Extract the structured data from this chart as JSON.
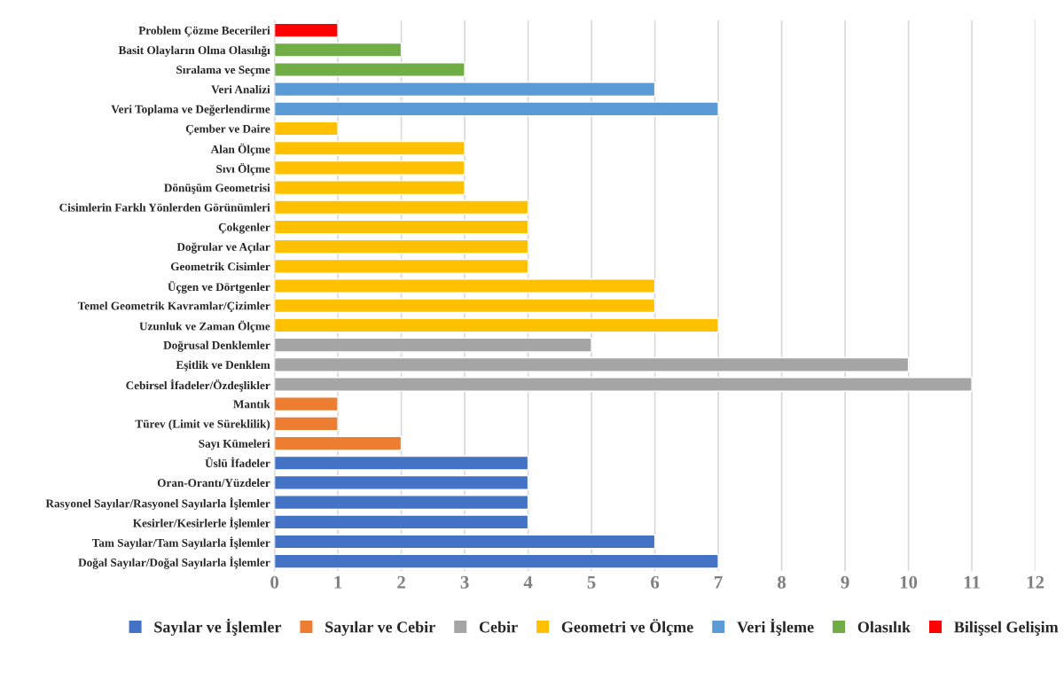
{
  "chart_data": {
    "type": "bar",
    "orientation": "horizontal",
    "categories": [
      "Problem Çözme Becerileri",
      "Basit Olayların Olma Olasılığı",
      "Sıralama ve Seçme",
      "Veri Analizi",
      "Veri Toplama ve Değerlendirme",
      "Çember ve Daire",
      "Alan Ölçme",
      "Sıvı Ölçme",
      "Dönüşüm Geometrisi",
      "Cisimlerin Farklı Yönlerden Görünümleri",
      "Çokgenler",
      "Doğrular ve Açılar",
      "Geometrik Cisimler",
      "Üçgen ve Dörtgenler",
      "Temel Geometrik Kavramlar/Çizimler",
      "Uzunluk ve Zaman Ölçme",
      "Doğrusal Denklemler",
      "Eşitlik ve Denklem",
      "Cebirsel İfadeler/Özdeşlikler",
      "Mantık",
      "Türev (Limit ve Süreklilik)",
      "Sayı Kümeleri",
      "Üslü İfadeler",
      "Oran-Orantı/Yüzdeler",
      "Rasyonel Sayılar/Rasyonel Sayılarla İşlemler",
      "Kesirler/Kesirlerle İşlemler",
      "Tam Sayılar/Tam Sayılarla İşlemler",
      "Doğal Sayılar/Doğal Sayılarla İşlemler"
    ],
    "series": [
      {
        "name": "Sayılar ve İşlemler",
        "color": "#4472c4",
        "values": [
          null,
          null,
          null,
          null,
          null,
          null,
          null,
          null,
          null,
          null,
          null,
          null,
          null,
          null,
          null,
          null,
          null,
          null,
          null,
          null,
          null,
          null,
          4,
          4,
          4,
          4,
          6,
          7
        ]
      },
      {
        "name": "Sayılar ve Cebir",
        "color": "#ed7d31",
        "values": [
          null,
          null,
          null,
          null,
          null,
          null,
          null,
          null,
          null,
          null,
          null,
          null,
          null,
          null,
          null,
          null,
          null,
          null,
          null,
          1,
          1,
          2,
          null,
          null,
          null,
          null,
          null,
          null
        ]
      },
      {
        "name": "Cebir",
        "color": "#a5a5a5",
        "values": [
          null,
          null,
          null,
          null,
          null,
          null,
          null,
          null,
          null,
          null,
          null,
          null,
          null,
          null,
          null,
          null,
          5,
          10,
          11,
          null,
          null,
          null,
          null,
          null,
          null,
          null,
          null,
          null
        ]
      },
      {
        "name": "Geometri ve Ölçme",
        "color": "#ffc000",
        "values": [
          null,
          null,
          null,
          null,
          null,
          1,
          3,
          3,
          3,
          4,
          4,
          4,
          4,
          6,
          6,
          7,
          null,
          null,
          null,
          null,
          null,
          null,
          null,
          null,
          null,
          null,
          null,
          null
        ]
      },
      {
        "name": "Veri İşleme",
        "color": "#5b9bd5",
        "values": [
          null,
          null,
          null,
          6,
          7,
          null,
          null,
          null,
          null,
          null,
          null,
          null,
          null,
          null,
          null,
          null,
          null,
          null,
          null,
          null,
          null,
          null,
          null,
          null,
          null,
          null,
          null,
          null
        ]
      },
      {
        "name": "Olasılık",
        "color": "#70ad47",
        "values": [
          null,
          2,
          3,
          null,
          null,
          null,
          null,
          null,
          null,
          null,
          null,
          null,
          null,
          null,
          null,
          null,
          null,
          null,
          null,
          null,
          null,
          null,
          null,
          null,
          null,
          null,
          null,
          null
        ]
      },
      {
        "name": "Bilişsel Gelişim",
        "color": "#ff0000",
        "values": [
          1,
          null,
          null,
          null,
          null,
          null,
          null,
          null,
          null,
          null,
          null,
          null,
          null,
          null,
          null,
          null,
          null,
          null,
          null,
          null,
          null,
          null,
          null,
          null,
          null,
          null,
          null,
          null
        ]
      }
    ],
    "xlim": [
      0,
      12
    ],
    "xticks": [
      0,
      1,
      2,
      3,
      4,
      5,
      6,
      7,
      8,
      9,
      10,
      11,
      12
    ],
    "grid": "x",
    "legend": "bottom"
  }
}
